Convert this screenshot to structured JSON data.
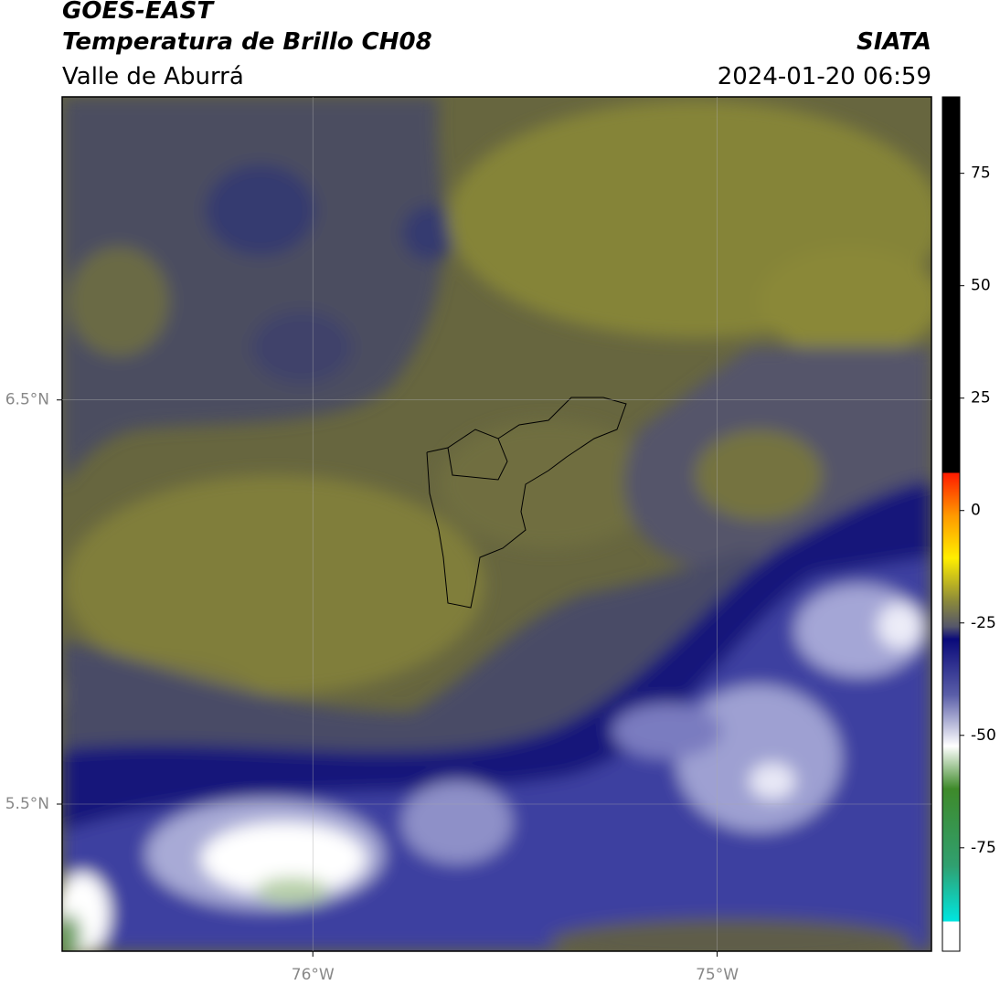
{
  "header": {
    "title": "GOES-EAST",
    "subtitle": "Temperatura de Brillo CH08",
    "region": "Valle de Aburrá",
    "source": "SIATA",
    "datetime": "2024-01-20 06:59"
  },
  "map": {
    "xlim": [
      -76.62,
      -74.47
    ],
    "ylim": [
      5.136,
      7.25
    ],
    "xticks": [
      {
        "value": -76,
        "label": "76°W"
      },
      {
        "value": -75,
        "label": "75°W"
      }
    ],
    "yticks": [
      {
        "value": 6.5,
        "label": "6.5°N"
      },
      {
        "value": 5.5,
        "label": "5.5°N"
      }
    ],
    "grid": true
  },
  "colorbar": {
    "lim": [
      -98,
      92
    ],
    "ticks": [
      -75,
      -50,
      -25,
      0,
      25,
      50,
      75
    ]
  }
}
